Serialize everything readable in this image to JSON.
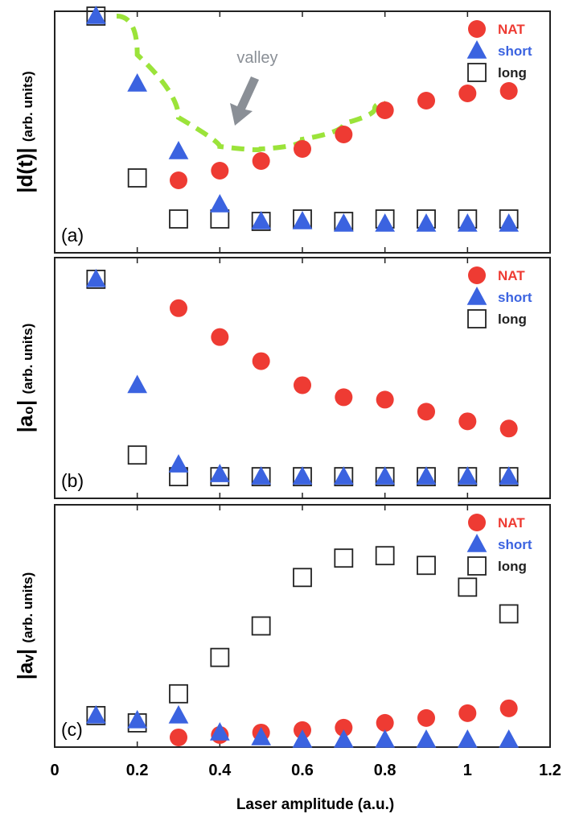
{
  "chart_data": [
    {
      "type": "scatter",
      "panel_label": "(a)",
      "ylabel": "|d(t)|",
      "ylabel_unit": "(arb. units)",
      "ylim": [
        0,
        1
      ],
      "legend_position": "top-right",
      "annotation": {
        "text": "valley"
      },
      "series": [
        {
          "name": "NAT",
          "marker": "circle",
          "color": "#ee3b33",
          "x": [
            0.3,
            0.4,
            0.5,
            0.6,
            0.7,
            0.8,
            0.9,
            1.0,
            1.1
          ],
          "y": [
            0.3,
            0.34,
            0.38,
            0.43,
            0.49,
            0.59,
            0.63,
            0.66,
            0.67
          ]
        },
        {
          "name": "short",
          "marker": "triangle",
          "color": "#3b63e0",
          "x": [
            0.1,
            0.2,
            0.3,
            0.4,
            0.5,
            0.6,
            0.7,
            0.8,
            0.9,
            1.0,
            1.1
          ],
          "y": [
            0.98,
            0.7,
            0.42,
            0.2,
            0.13,
            0.13,
            0.12,
            0.12,
            0.12,
            0.12,
            0.12
          ]
        },
        {
          "name": "long",
          "marker": "square",
          "color": "#222222",
          "x": [
            0.1,
            0.2,
            0.3,
            0.4,
            0.5,
            0.6,
            0.7,
            0.8,
            0.9,
            1.0,
            1.1
          ],
          "y": [
            0.98,
            0.31,
            0.14,
            0.14,
            0.13,
            0.14,
            0.13,
            0.14,
            0.14,
            0.14,
            0.14
          ]
        }
      ],
      "trend_curve": {
        "color": "#9be33a",
        "x": [
          0.15,
          0.25,
          0.35,
          0.45,
          0.55,
          0.65,
          0.75,
          0.8
        ],
        "y": [
          0.98,
          0.66,
          0.46,
          0.42,
          0.44,
          0.5,
          0.57,
          0.62
        ]
      }
    },
    {
      "type": "scatter",
      "panel_label": "(b)",
      "ylabel": "|a₀|",
      "ylabel_unit": "(arb. units)",
      "ylim": [
        0,
        1
      ],
      "legend_position": "top-right",
      "series": [
        {
          "name": "NAT",
          "marker": "circle",
          "color": "#ee3b33",
          "x": [
            0.3,
            0.4,
            0.5,
            0.6,
            0.7,
            0.8,
            0.9,
            1.0,
            1.1
          ],
          "y": [
            0.79,
            0.67,
            0.57,
            0.47,
            0.42,
            0.41,
            0.36,
            0.32,
            0.29
          ]
        },
        {
          "name": "short",
          "marker": "triangle",
          "color": "#3b63e0",
          "x": [
            0.1,
            0.2,
            0.3,
            0.4,
            0.5,
            0.6,
            0.7,
            0.8,
            0.9,
            1.0,
            1.1
          ],
          "y": [
            0.91,
            0.47,
            0.14,
            0.1,
            0.09,
            0.09,
            0.09,
            0.09,
            0.09,
            0.09,
            0.09
          ]
        },
        {
          "name": "long",
          "marker": "square",
          "color": "#222222",
          "x": [
            0.1,
            0.2,
            0.3,
            0.4,
            0.5,
            0.6,
            0.7,
            0.8,
            0.9,
            1.0,
            1.1
          ],
          "y": [
            0.91,
            0.18,
            0.09,
            0.09,
            0.09,
            0.09,
            0.09,
            0.09,
            0.09,
            0.09,
            0.09
          ]
        }
      ]
    },
    {
      "type": "scatter",
      "panel_label": "(c)",
      "ylabel": "|aᵥ|",
      "ylabel_unit": "(arb. units)",
      "ylim": [
        0,
        1
      ],
      "xlim": [
        0,
        1.2
      ],
      "xlabel": "Laser amplitude  (a.u.)",
      "xticks": [
        "0",
        "0.2",
        "0.4",
        "0.6",
        "0.8",
        "1",
        "1.2"
      ],
      "xtick_values": [
        0,
        0.2,
        0.4,
        0.6,
        0.8,
        1.0,
        1.2
      ],
      "legend_position": "top-right",
      "series": [
        {
          "name": "NAT",
          "marker": "circle",
          "color": "#ee3b33",
          "x": [
            0.3,
            0.4,
            0.5,
            0.6,
            0.7,
            0.8,
            0.9,
            1.0,
            1.1
          ],
          "y": [
            0.04,
            0.05,
            0.06,
            0.07,
            0.08,
            0.1,
            0.12,
            0.14,
            0.16
          ]
        },
        {
          "name": "short",
          "marker": "triangle",
          "color": "#3b63e0",
          "x": [
            0.1,
            0.2,
            0.3,
            0.4,
            0.5,
            0.6,
            0.7,
            0.8,
            0.9,
            1.0,
            1.1
          ],
          "y": [
            0.13,
            0.11,
            0.13,
            0.06,
            0.04,
            0.03,
            0.03,
            0.03,
            0.03,
            0.03,
            0.03
          ]
        },
        {
          "name": "long",
          "marker": "square",
          "color": "#222222",
          "x": [
            0.1,
            0.2,
            0.3,
            0.4,
            0.5,
            0.6,
            0.7,
            0.8,
            0.9,
            1.0,
            1.1
          ],
          "y": [
            0.13,
            0.1,
            0.22,
            0.37,
            0.5,
            0.7,
            0.78,
            0.79,
            0.75,
            0.66,
            0.55
          ]
        }
      ]
    }
  ]
}
